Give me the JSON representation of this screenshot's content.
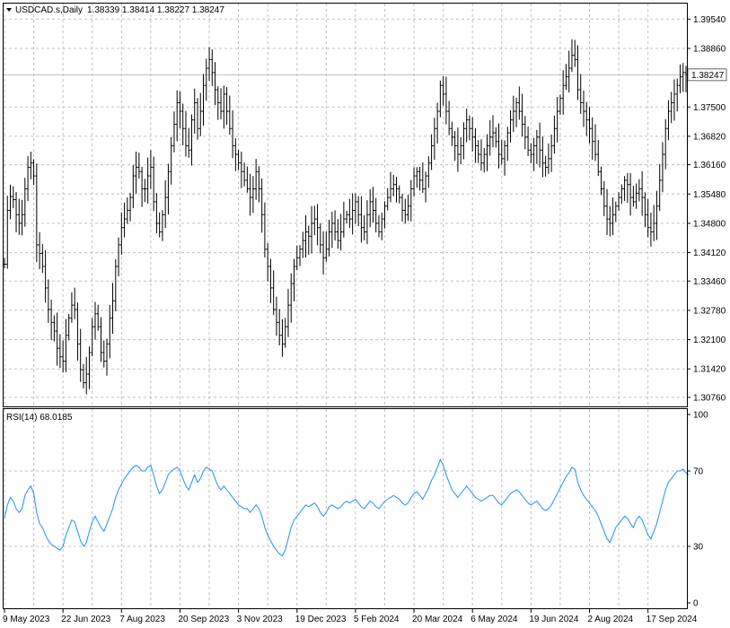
{
  "header": {
    "symbol": "USDCAD.s,Daily",
    "ohlc": "1.38339 1.38414 1.38227 1.38247"
  },
  "rsi_header": "RSI(14) 68.0185",
  "colors": {
    "bars": "#000000",
    "rsi_line": "#1e90ff",
    "grid": "#c0c0c0",
    "current_price_line": "#c0c0c0",
    "background": "#ffffff"
  },
  "chart_data": [
    {
      "type": "ohlc",
      "title": "USDCAD.s,Daily",
      "current_price": 1.38247,
      "current_price_label": "1.38247",
      "ylim": [
        1.3055,
        1.399
      ],
      "y_ticks": [
        1.3954,
        1.3886,
        1.375,
        1.3682,
        1.3616,
        1.3548,
        1.348,
        1.3412,
        1.3346,
        1.3278,
        1.321,
        1.3142,
        1.3076
      ],
      "y_tick_labels": [
        "1.39540",
        "1.38860",
        "1.37500",
        "1.36820",
        "1.36160",
        "1.35480",
        "1.34800",
        "1.34120",
        "1.33460",
        "1.32780",
        "1.32100",
        "1.31420",
        "1.30760"
      ],
      "x_tick_labels": [
        "9 May 2023",
        "22 Jun 2023",
        "7 Aug 2023",
        "20 Sep 2023",
        "3 Nov 2023",
        "19 Dec 2023",
        "5 Feb 2024",
        "20 Mar 2024",
        "6 May 2024",
        "19 Jun 2024",
        "2 Aug 2024",
        "17 Sep 2024"
      ],
      "series": [
        {
          "values": [
            1.3385,
            1.351,
            1.3542,
            1.3535,
            1.35,
            1.348,
            1.35,
            1.356,
            1.361,
            1.362,
            1.359,
            1.343,
            1.341,
            1.338,
            1.333,
            1.328,
            1.325,
            1.323,
            1.319,
            1.317,
            1.316,
            1.322,
            1.326,
            1.329,
            1.328,
            1.32,
            1.314,
            1.311,
            1.313,
            1.318,
            1.324,
            1.327,
            1.324,
            1.318,
            1.316,
            1.32,
            1.326,
            1.33,
            1.338,
            1.343,
            1.347,
            1.349,
            1.351,
            1.354,
            1.359,
            1.361,
            1.36,
            1.356,
            1.356,
            1.359,
            1.361,
            1.353,
            1.348,
            1.346,
            1.35,
            1.354,
            1.36,
            1.366,
            1.371,
            1.376,
            1.374,
            1.37,
            1.366,
            1.365,
            1.372,
            1.376,
            1.37,
            1.374,
            1.38,
            1.384,
            1.386,
            1.383,
            1.379,
            1.376,
            1.374,
            1.378,
            1.374,
            1.37,
            1.366,
            1.364,
            1.362,
            1.36,
            1.358,
            1.356,
            1.354,
            1.356,
            1.36,
            1.356,
            1.35,
            1.342,
            1.338,
            1.333,
            1.328,
            1.325,
            1.322,
            1.32,
            1.324,
            1.329,
            1.334,
            1.338,
            1.34,
            1.342,
            1.344,
            1.346,
            1.345,
            1.348,
            1.349,
            1.347,
            1.343,
            1.34,
            1.342,
            1.346,
            1.348,
            1.346,
            1.344,
            1.346,
            1.349,
            1.35,
            1.349,
            1.351,
            1.353,
            1.35,
            1.347,
            1.346,
            1.35,
            1.353,
            1.351,
            1.348,
            1.346,
            1.349,
            1.352,
            1.354,
            1.356,
            1.357,
            1.356,
            1.354,
            1.351,
            1.35,
            1.352,
            1.356,
            1.359,
            1.36,
            1.358,
            1.356,
            1.359,
            1.362,
            1.366,
            1.37,
            1.374,
            1.38,
            1.378,
            1.374,
            1.37,
            1.368,
            1.366,
            1.364,
            1.366,
            1.37,
            1.372,
            1.37,
            1.368,
            1.366,
            1.364,
            1.362,
            1.364,
            1.366,
            1.368,
            1.369,
            1.367,
            1.364,
            1.363,
            1.366,
            1.369,
            1.372,
            1.374,
            1.376,
            1.374,
            1.371,
            1.368,
            1.365,
            1.364,
            1.366,
            1.368,
            1.365,
            1.362,
            1.361,
            1.363,
            1.366,
            1.37,
            1.374,
            1.377,
            1.38,
            1.382,
            1.384,
            1.387,
            1.386,
            1.379,
            1.376,
            1.374,
            1.372,
            1.37,
            1.367,
            1.364,
            1.36,
            1.356,
            1.352,
            1.349,
            1.348,
            1.35,
            1.352,
            1.354,
            1.356,
            1.358,
            1.357,
            1.354,
            1.353,
            1.355,
            1.356,
            1.354,
            1.35,
            1.347,
            1.346,
            1.348,
            1.352,
            1.358,
            1.364,
            1.37,
            1.374,
            1.376,
            1.378,
            1.38,
            1.382,
            1.383,
            1.3825
          ]
        }
      ]
    },
    {
      "type": "line",
      "title": "RSI(14) 68.0185",
      "ylim": [
        0,
        100
      ],
      "y_ticks": [
        100,
        70,
        30,
        0
      ],
      "y_tick_labels": [
        "100",
        "70",
        "30",
        "0"
      ],
      "series": [
        {
          "values": [
            45,
            52,
            56,
            54,
            50,
            48,
            50,
            57,
            60,
            62,
            58,
            48,
            42,
            40,
            36,
            33,
            31,
            30,
            29,
            28,
            30,
            36,
            40,
            44,
            43,
            38,
            33,
            30,
            32,
            38,
            43,
            46,
            43,
            40,
            38,
            42,
            46,
            50,
            56,
            60,
            63,
            66,
            68,
            70,
            72,
            73,
            72,
            70,
            70,
            72,
            73,
            68,
            62,
            58,
            60,
            64,
            68,
            70,
            71,
            72,
            70,
            66,
            62,
            60,
            64,
            68,
            64,
            66,
            70,
            72,
            71,
            70,
            66,
            62,
            60,
            62,
            60,
            58,
            56,
            54,
            52,
            51,
            50,
            50,
            48,
            50,
            52,
            50,
            46,
            40,
            36,
            33,
            30,
            28,
            26,
            25,
            28,
            34,
            40,
            44,
            46,
            48,
            50,
            52,
            51,
            52,
            53,
            51,
            48,
            46,
            48,
            51,
            52,
            51,
            50,
            51,
            53,
            54,
            53,
            54,
            55,
            53,
            51,
            50,
            52,
            54,
            53,
            51,
            50,
            52,
            54,
            55,
            56,
            57,
            56,
            55,
            53,
            52,
            53,
            56,
            58,
            59,
            57,
            55,
            58,
            61,
            65,
            68,
            72,
            76,
            73,
            68,
            64,
            60,
            58,
            56,
            58,
            60,
            62,
            60,
            58,
            56,
            55,
            54,
            55,
            56,
            57,
            57,
            55,
            53,
            52,
            54,
            56,
            58,
            59,
            60,
            59,
            57,
            55,
            53,
            52,
            53,
            54,
            52,
            50,
            49,
            50,
            52,
            55,
            58,
            61,
            64,
            67,
            69,
            72,
            71,
            64,
            60,
            57,
            55,
            53,
            51,
            49,
            46,
            42,
            38,
            34,
            32,
            36,
            40,
            42,
            44,
            46,
            45,
            42,
            40,
            44,
            46,
            44,
            40,
            36,
            34,
            38,
            42,
            48,
            54,
            60,
            64,
            66,
            68,
            70,
            70,
            71,
            69,
            68
          ]
        }
      ]
    }
  ]
}
